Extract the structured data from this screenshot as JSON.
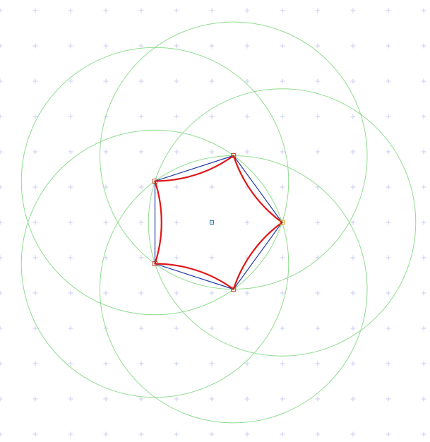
{
  "colors": {
    "background": "#ffffff",
    "grid_marker": "#c9cdf0",
    "construction_circle": "#8fdc8f",
    "polygon_edge": "#1f3aa8",
    "reuleaux_outline": "#e01616",
    "vertex_marker": "#c0392b",
    "vertex_marker_accent": "#d4a017",
    "center_marker": "#1f7fb0"
  },
  "grid": {
    "marker": "plus",
    "visible": true
  },
  "figure": {
    "type": "reuleaux-pentagon-construction",
    "polygon_sides": 5,
    "construction_circles": 5,
    "show_center_marker": true,
    "show_vertex_markers": true
  }
}
